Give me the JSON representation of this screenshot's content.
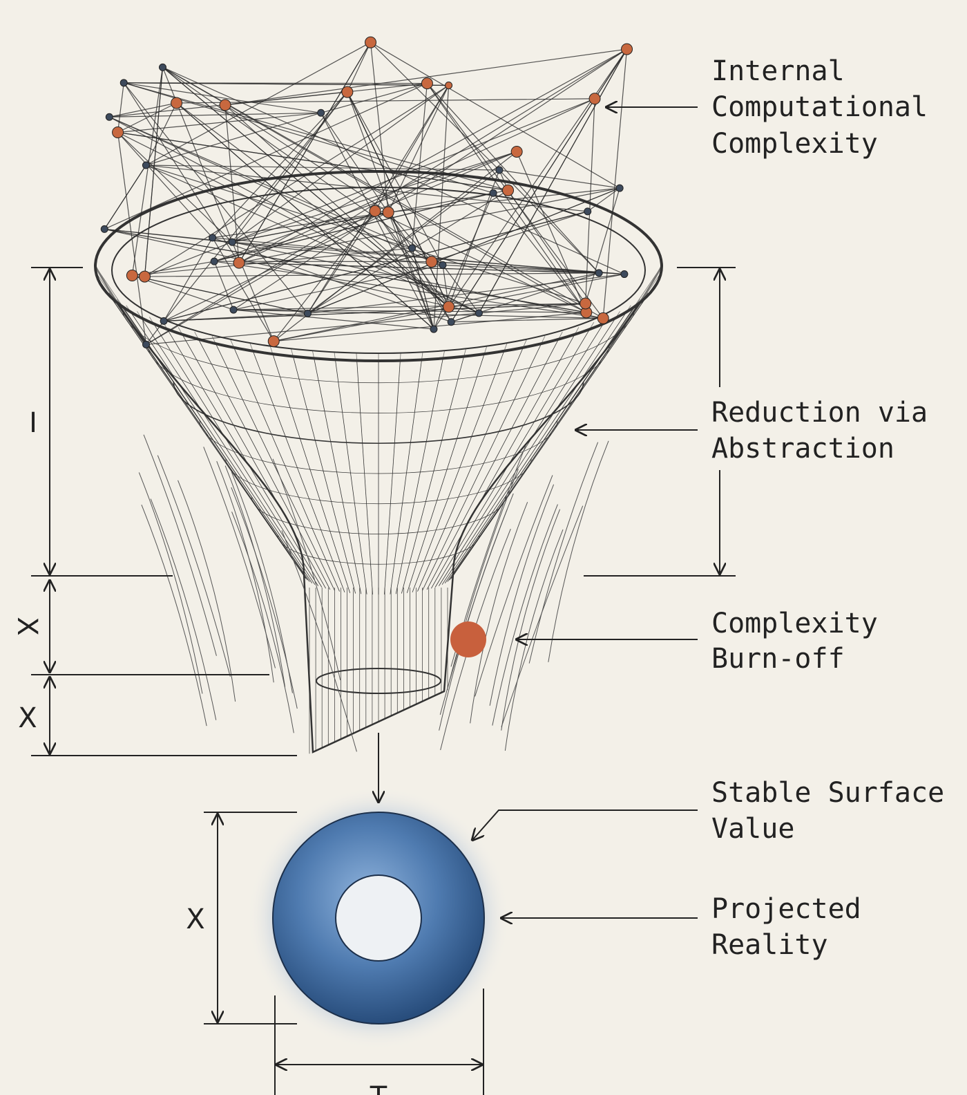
{
  "labels": [
    {
      "lines": [
        "Internal",
        "Computational",
        "Complexity"
      ]
    },
    {
      "lines": [
        "Reduction via",
        "Abstraction"
      ]
    },
    {
      "lines": [
        "Complexity",
        "Burn-off"
      ]
    },
    {
      "lines": [
        "Stable Surface",
        "Value"
      ]
    },
    {
      "lines": [
        "Projected",
        "Reality"
      ]
    }
  ],
  "dimension_marks": [
    "I",
    "X",
    "X",
    "X",
    "T"
  ]
}
